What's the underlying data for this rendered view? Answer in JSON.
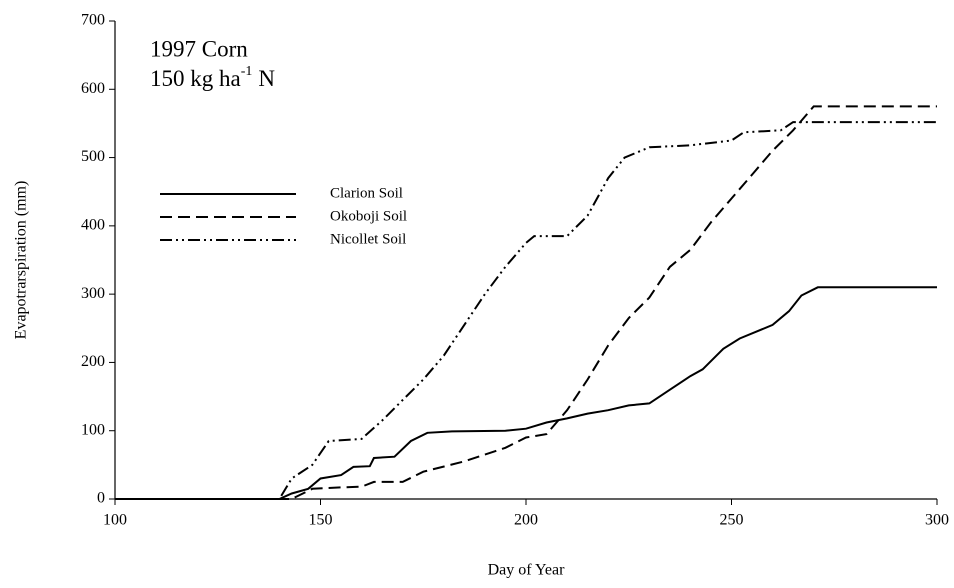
{
  "chart_data": {
    "type": "line",
    "annotation": "1997 Corn",
    "annotation2": {
      "text": "150 kg ha",
      "sup": "-1",
      "suffix": "N"
    },
    "xlabel": "Day of Year",
    "ylabel": "Evapotrarspiration (mm)",
    "xlim": [
      100,
      300
    ],
    "xticks": [
      100,
      150,
      200,
      250,
      300
    ],
    "ylim": [
      0,
      700
    ],
    "yticks": [
      0,
      100,
      200,
      300,
      400,
      500,
      600,
      700
    ],
    "legend": "upper left",
    "series": [
      {
        "name": "Clarion Soil",
        "color": "#000000",
        "style": "solid",
        "x": [
          100,
          140,
          143,
          147,
          150,
          155,
          158,
          162,
          163,
          168,
          172,
          176,
          182,
          195,
          200,
          205,
          210,
          215,
          220,
          225,
          230,
          235,
          240,
          243,
          248,
          252,
          256,
          260,
          264,
          267,
          271,
          300
        ],
        "values": [
          0,
          0,
          8,
          15,
          30,
          35,
          47,
          48,
          60,
          62,
          85,
          97,
          99,
          100,
          103,
          112,
          118,
          125,
          130,
          137,
          140,
          160,
          180,
          190,
          220,
          235,
          245,
          255,
          275,
          298,
          310,
          310
        ]
      },
      {
        "name": "Okoboji Soil",
        "color": "#000000",
        "style": "dashed",
        "x": [
          100,
          143,
          148,
          155,
          160,
          163,
          170,
          175,
          185,
          195,
          200,
          205,
          210,
          215,
          220,
          225,
          230,
          235,
          240,
          245,
          250,
          255,
          260,
          265,
          270,
          300
        ],
        "values": [
          0,
          0,
          15,
          17,
          18,
          25,
          25,
          40,
          55,
          75,
          90,
          95,
          130,
          175,
          225,
          265,
          295,
          340,
          365,
          405,
          440,
          475,
          510,
          540,
          575,
          575
        ]
      },
      {
        "name": "Nicollet Soil",
        "color": "#000000",
        "style": "dashdotdot",
        "x": [
          100,
          140,
          143,
          148,
          152,
          160,
          165,
          170,
          175,
          180,
          185,
          190,
          195,
          200,
          202,
          210,
          215,
          220,
          224,
          230,
          240,
          250,
          253,
          262,
          265,
          300
        ],
        "values": [
          0,
          0,
          30,
          50,
          85,
          88,
          115,
          145,
          175,
          210,
          255,
          300,
          340,
          375,
          385,
          385,
          415,
          470,
          500,
          515,
          518,
          525,
          537,
          540,
          552,
          552
        ]
      }
    ]
  }
}
